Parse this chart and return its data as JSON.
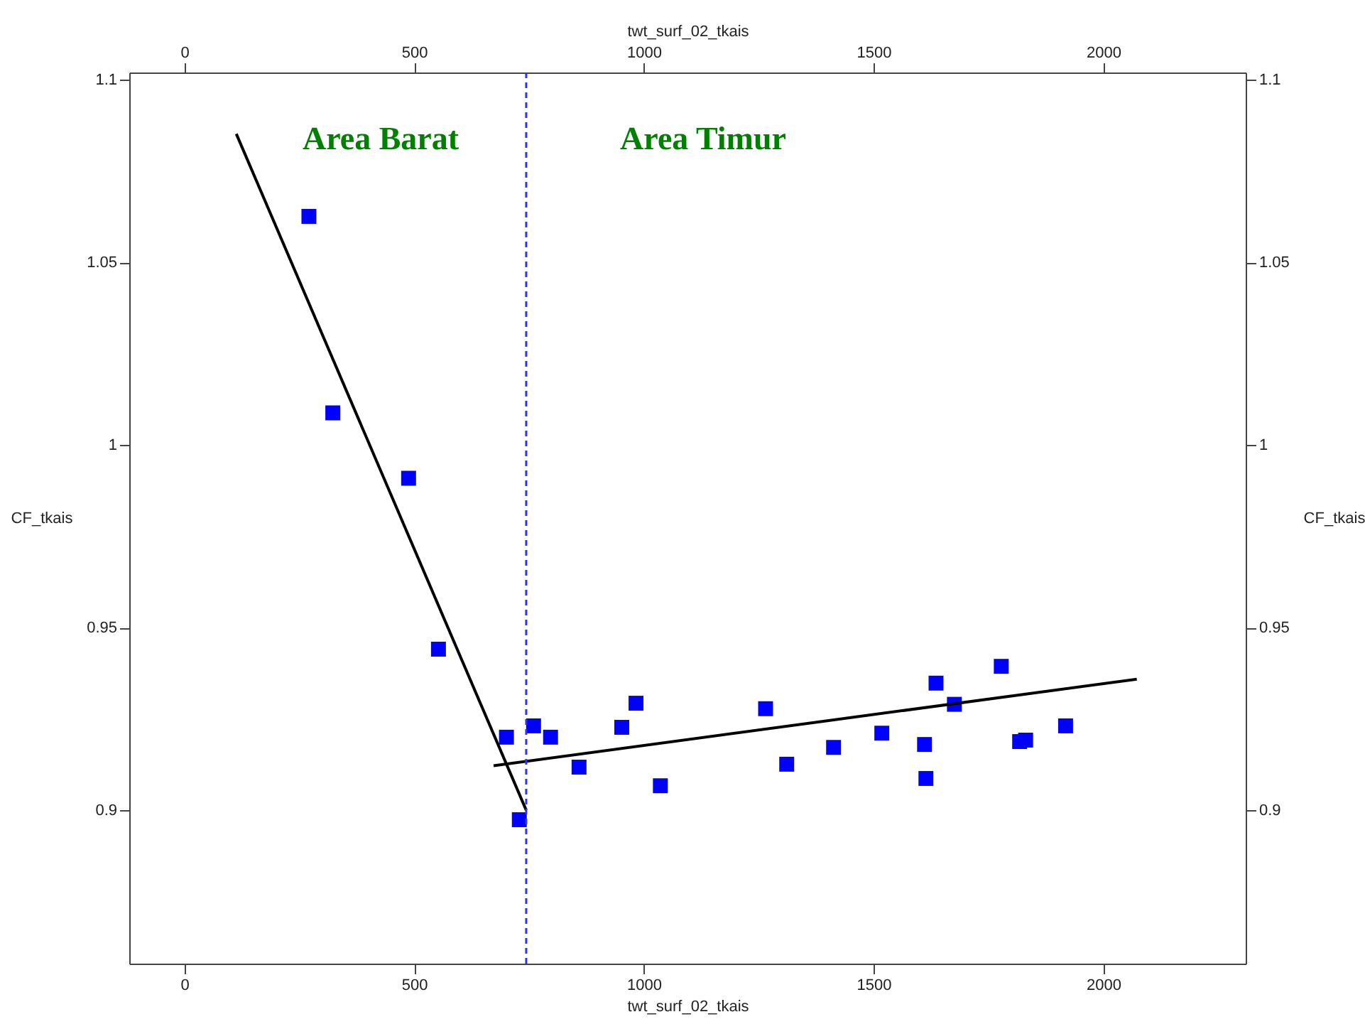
{
  "chart_data": {
    "type": "scatter",
    "xlabel": "twt_surf_02_tkais",
    "x2label": "twt_surf_02_tkais",
    "ylabel": "CF_tkais",
    "y2label": "CF_tkais",
    "xlim": [
      -120,
      2310
    ],
    "xticks": [
      0,
      500,
      1000,
      1500,
      2000
    ],
    "x2lim": [
      -120,
      2310
    ],
    "x2ticks": [
      0,
      500,
      1000,
      1500,
      2000
    ],
    "ylim": [
      0.858,
      1.102
    ],
    "yticks": [
      0.9,
      0.95,
      1,
      1.05,
      1.1
    ],
    "y2lim": [
      0.858,
      1.102
    ],
    "y2ticks": [
      0.9,
      0.95,
      1,
      1.05,
      1.1
    ],
    "grid": false,
    "series": [
      {
        "marker": "square",
        "color": "#0000ff",
        "x": [
          271,
          323,
          488,
          553,
          701,
          729,
          760,
          797,
          859,
          952,
          983,
          1036,
          1265,
          1311,
          1413,
          1518,
          1611,
          1614,
          1636,
          1676,
          1778,
          1818,
          1831,
          1918
        ],
        "values": [
          1.0626,
          1.0088,
          0.9909,
          0.9441,
          0.92,
          0.8974,
          0.9231,
          0.92,
          0.9118,
          0.9227,
          0.9293,
          0.9067,
          0.9278,
          0.9126,
          0.9172,
          0.9211,
          0.918,
          0.9087,
          0.9348,
          0.929,
          0.9394,
          0.9188,
          0.9192,
          0.9231
        ]
      },
      {
        "type": "line",
        "marker": "none",
        "color": "#000000",
        "line_style": "solid",
        "x": [
          113,
          744
        ],
        "values": [
          1.0852,
          0.9
        ]
      },
      {
        "type": "line",
        "marker": "none",
        "color": "#000000",
        "line_style": "solid",
        "x": [
          673,
          2073
        ],
        "values": [
          0.9122,
          0.9359
        ]
      }
    ],
    "ref_lines": [
      {
        "axis": "x",
        "value": 744,
        "color": "#3030ff",
        "line_style": "dashed"
      }
    ],
    "annotations": [
      "Area Barat",
      "Area Timur"
    ]
  }
}
